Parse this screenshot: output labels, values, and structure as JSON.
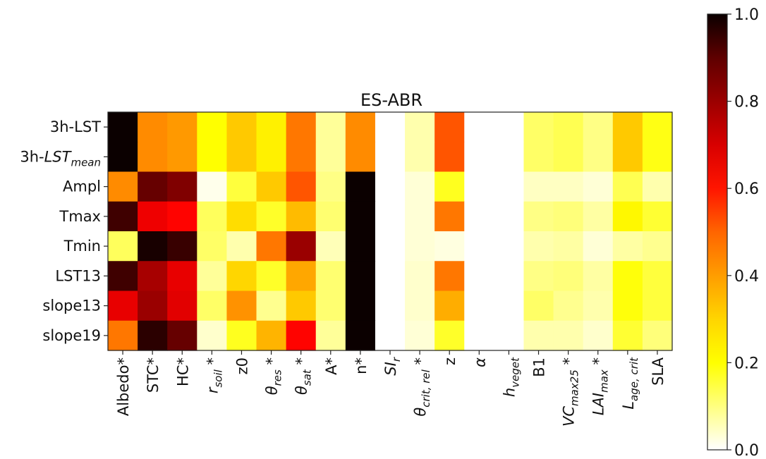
{
  "chart_data": {
    "type": "heatmap",
    "title": "ES-ABR",
    "rows": [
      {
        "label": "3h-LST"
      },
      {
        "label": "3h-",
        "label_italic": "LST",
        "label_sub": "mean"
      },
      {
        "label": "Ampl"
      },
      {
        "label": "Tmax"
      },
      {
        "label": "Tmin"
      },
      {
        "label": "LST13"
      },
      {
        "label": "slope13"
      },
      {
        "label": "slope19"
      }
    ],
    "columns": [
      {
        "label": "Albedo*"
      },
      {
        "label": "STC*"
      },
      {
        "label": "HC*"
      },
      {
        "italic": "r",
        "sub": "soil",
        "suffix": " *"
      },
      {
        "label": "z0"
      },
      {
        "italic": "θ",
        "sub": "res",
        "suffix": " *"
      },
      {
        "italic": "θ",
        "sub": "sat",
        "suffix": " *"
      },
      {
        "label": "A*"
      },
      {
        "label": "n*"
      },
      {
        "italic": "SI",
        "sub": "r"
      },
      {
        "italic": "θ",
        "sub": "crit, rel",
        "suffix": " *"
      },
      {
        "label": "z"
      },
      {
        "italic": "α"
      },
      {
        "italic": "h",
        "sub": "veget"
      },
      {
        "label": "B1"
      },
      {
        "italic": "VC",
        "sub": "max25",
        "suffix": " *"
      },
      {
        "italic": "LAI",
        "sub": "max",
        "suffix": " *"
      },
      {
        "italic": "L",
        "sub": "age, crit"
      },
      {
        "label": "SLA"
      }
    ],
    "values": [
      [
        1.0,
        0.42,
        0.4,
        0.25,
        0.33,
        0.27,
        0.45,
        0.1,
        0.42,
        0.0,
        0.08,
        0.5,
        0.0,
        0.0,
        0.15,
        0.17,
        0.12,
        0.33,
        0.23
      ],
      [
        1.0,
        0.42,
        0.4,
        0.25,
        0.33,
        0.27,
        0.45,
        0.1,
        0.42,
        0.0,
        0.08,
        0.5,
        0.0,
        0.0,
        0.15,
        0.17,
        0.12,
        0.33,
        0.23
      ],
      [
        0.42,
        0.86,
        0.82,
        0.02,
        0.19,
        0.33,
        0.5,
        0.12,
        1.0,
        0.0,
        0.04,
        0.22,
        0.0,
        0.0,
        0.06,
        0.06,
        0.04,
        0.17,
        0.08
      ],
      [
        0.92,
        0.65,
        0.62,
        0.16,
        0.3,
        0.21,
        0.35,
        0.14,
        1.0,
        0.0,
        0.04,
        0.45,
        0.0,
        0.0,
        0.12,
        0.13,
        0.09,
        0.26,
        0.2
      ],
      [
        0.16,
        0.98,
        0.93,
        0.15,
        0.08,
        0.45,
        0.78,
        0.07,
        1.0,
        0.0,
        0.04,
        0.03,
        0.0,
        0.0,
        0.08,
        0.09,
        0.04,
        0.09,
        0.11
      ],
      [
        0.92,
        0.76,
        0.66,
        0.1,
        0.31,
        0.21,
        0.38,
        0.14,
        1.0,
        0.0,
        0.05,
        0.45,
        0.0,
        0.0,
        0.12,
        0.13,
        0.09,
        0.24,
        0.19
      ],
      [
        0.66,
        0.78,
        0.67,
        0.15,
        0.41,
        0.11,
        0.33,
        0.14,
        1.0,
        0.0,
        0.05,
        0.37,
        0.0,
        0.0,
        0.15,
        0.11,
        0.08,
        0.24,
        0.19
      ],
      [
        0.45,
        0.95,
        0.86,
        0.05,
        0.22,
        0.36,
        0.62,
        0.1,
        1.0,
        0.0,
        0.04,
        0.21,
        0.0,
        0.0,
        0.08,
        0.08,
        0.05,
        0.2,
        0.13
      ]
    ],
    "colormap": "hot_r",
    "vmin": 0.0,
    "vmax": 1.0,
    "colorbar_ticks": [
      "0.0",
      "0.2",
      "0.4",
      "0.6",
      "0.8",
      "1.0"
    ]
  }
}
